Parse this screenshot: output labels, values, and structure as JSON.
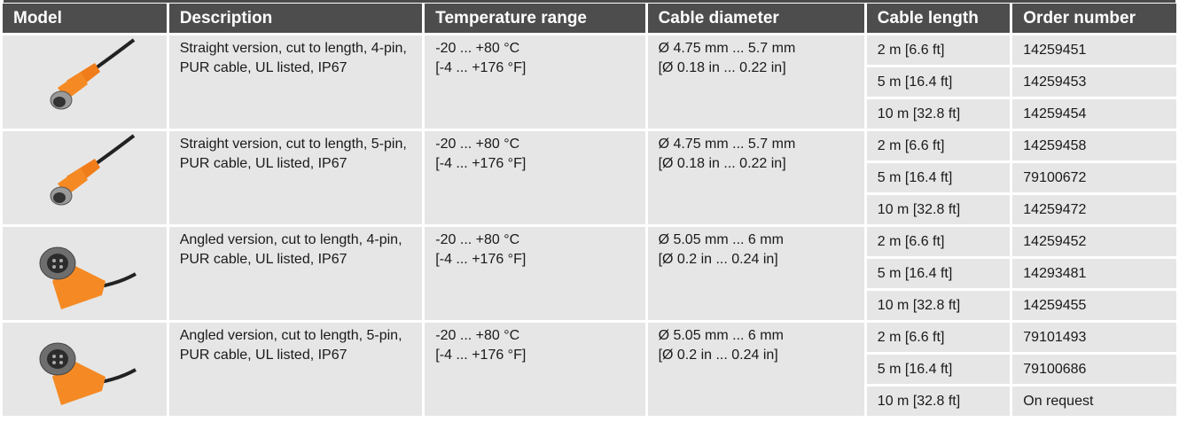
{
  "header": [
    "Model",
    "Description",
    "Temperature range",
    "Cable diameter",
    "Cable length",
    "Order number"
  ],
  "groups": [
    {
      "description": "Straight version, cut to length, 4-pin, PUR cable, UL listed, IP67",
      "temperature": [
        "-20 ... +80 °C",
        "[-4 ... +176 °F]"
      ],
      "diameter": [
        "Ø 4.75 mm ... 5.7 mm",
        "[Ø 0.18 in ... 0.22 in]"
      ],
      "variants": [
        {
          "length": "2 m [6.6 ft]",
          "order": "14259451"
        },
        {
          "length": "5 m [16.4 ft]",
          "order": "14259453"
        },
        {
          "length": "10 m [32.8 ft]",
          "order": "14259454"
        }
      ]
    },
    {
      "description": "Straight version, cut to length, 5-pin, PUR cable, UL listed, IP67",
      "temperature": [
        "-20 ... +80 °C",
        "[-4 ... +176 °F]"
      ],
      "diameter": [
        "Ø 4.75 mm ... 5.7 mm",
        "[Ø 0.18 in ... 0.22 in]"
      ],
      "variants": [
        {
          "length": "2 m [6.6 ft]",
          "order": "14259458"
        },
        {
          "length": "5 m [16.4 ft]",
          "order": "79100672"
        },
        {
          "length": "10 m [32.8 ft]",
          "order": "14259472"
        }
      ]
    },
    {
      "description": "Angled version, cut to length, 4-pin, PUR cable, UL listed, IP67",
      "temperature": [
        "-20 ... +80 °C",
        "[-4 ... +176 °F]"
      ],
      "diameter": [
        "Ø 5.05 mm ... 6 mm",
        "[Ø 0.2 in ... 0.24 in]"
      ],
      "variants": [
        {
          "length": "2 m [6.6 ft]",
          "order": "14259452"
        },
        {
          "length": "5 m [16.4 ft]",
          "order": "14293481"
        },
        {
          "length": "10 m [32.8 ft]",
          "order": "14259455"
        }
      ]
    },
    {
      "description": "Angled version, cut to length, 5-pin, PUR cable, UL listed, IP67",
      "temperature": [
        "-20 ... +80 °C",
        "[-4 ... +176 °F]"
      ],
      "diameter": [
        "Ø 5.05 mm ... 6 mm",
        "[Ø 0.2 in ... 0.24 in]"
      ],
      "variants": [
        {
          "length": "2 m [6.6 ft]",
          "order": "79101493"
        },
        {
          "length": "5 m [16.4 ft]",
          "order": "79100686"
        },
        {
          "length": "10 m [32.8 ft]",
          "order": "On request"
        }
      ]
    }
  ]
}
